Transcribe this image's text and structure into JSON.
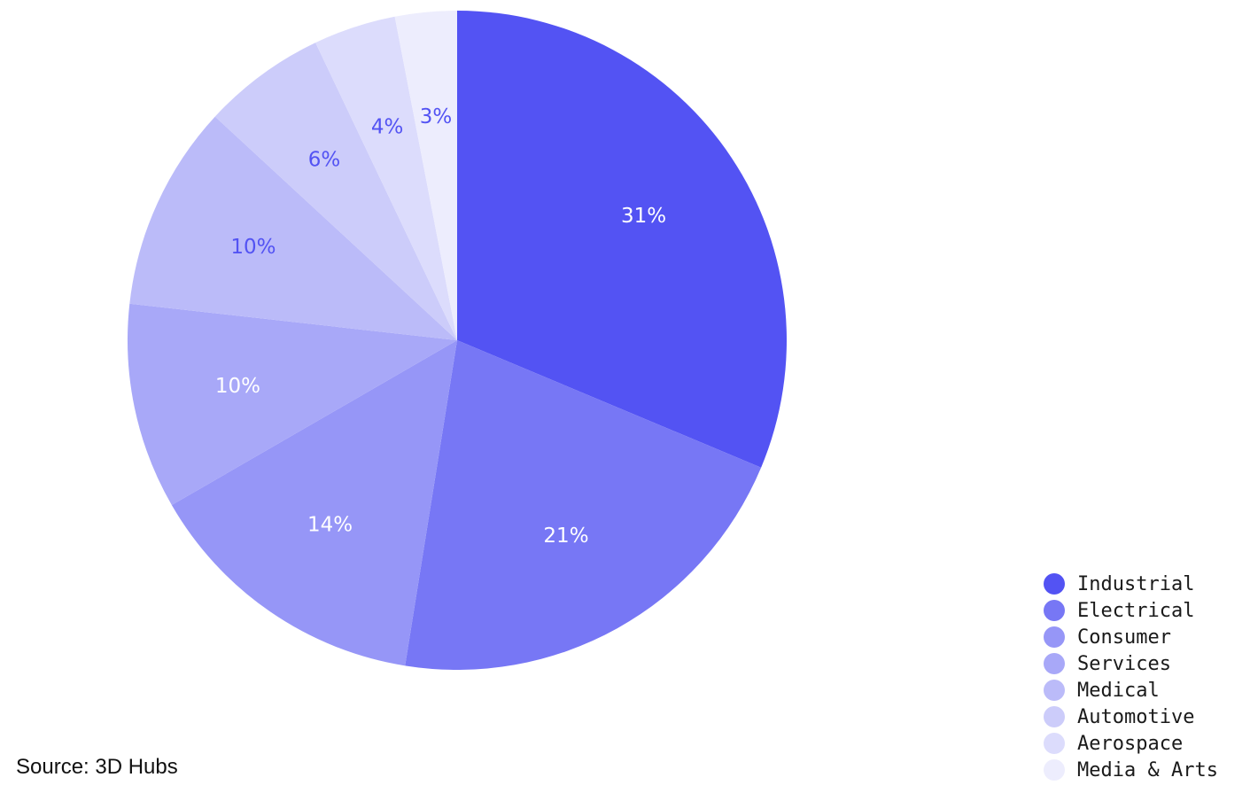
{
  "chart_data": {
    "type": "pie",
    "categories": [
      "Industrial",
      "Electrical",
      "Consumer",
      "Services",
      "Medical",
      "Automotive",
      "Aerospace",
      "Media & Arts"
    ],
    "values": [
      31,
      21,
      14,
      10,
      10,
      6,
      4,
      3
    ],
    "labels": [
      "31%",
      "21%",
      "14%",
      "10%",
      "10%",
      "6%",
      "4%",
      "3%"
    ],
    "colors": [
      "#5353f3",
      "#7777f5",
      "#9696f7",
      "#a8a8f8",
      "#bbbbf9",
      "#ccccfa",
      "#dcdcfc",
      "#ededfd"
    ],
    "label_colors": [
      "#ffffff",
      "#ffffff",
      "#ffffff",
      "#ffffff",
      "#5353f3",
      "#5353f3",
      "#5353f3",
      "#5353f3"
    ],
    "start": "12 o'clock",
    "direction": "clockwise",
    "legend_position": "bottom-right"
  },
  "source": "Source: 3D Hubs"
}
